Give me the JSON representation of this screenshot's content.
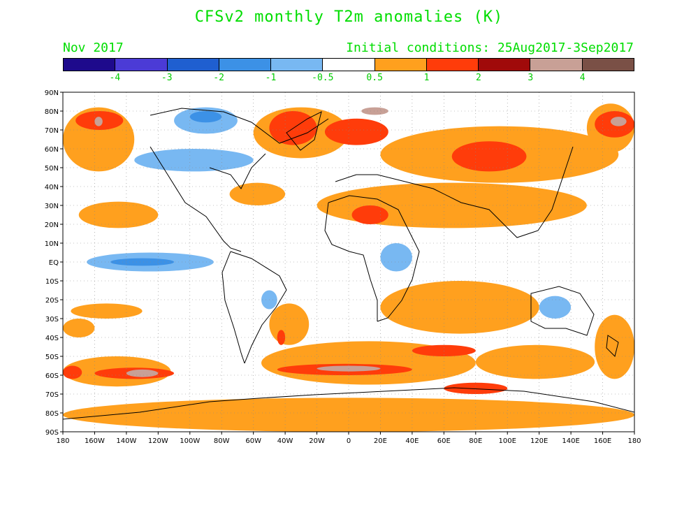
{
  "title": "CFSv2 monthly T2m anomalies (K)",
  "forecast_month": "Nov 2017",
  "initial_conditions": "Initial conditions: 25Aug2017-3Sep2017",
  "colorbar": {
    "colors": [
      "#1e0a8c",
      "#4b3bd6",
      "#1f5fd0",
      "#3c91e6",
      "#78b8f2",
      "#ffffff",
      "#ffa01e",
      "#ff3c0a",
      "#a00a0a",
      "#c8a096",
      "#7a5046"
    ],
    "labels": [
      "-4",
      "-3",
      "-2",
      "-1",
      "-0.5",
      "0.5",
      "1",
      "2",
      "3",
      "4"
    ]
  },
  "axes": {
    "lat_labels": [
      "90N",
      "80N",
      "70N",
      "60N",
      "50N",
      "40N",
      "30N",
      "20N",
      "10N",
      "EQ",
      "10S",
      "20S",
      "30S",
      "40S",
      "50S",
      "60S",
      "70S",
      "80S",
      "90S"
    ],
    "lon_labels": [
      "180",
      "160W",
      "140W",
      "120W",
      "100W",
      "80W",
      "60W",
      "40W",
      "20W",
      "0",
      "20E",
      "40E",
      "60E",
      "80E",
      "100E",
      "120E",
      "140E",
      "160E",
      "180"
    ]
  },
  "anomaly_regions": [
    {
      "level": "0.5",
      "lon": [
        -180,
        180
      ],
      "lat": [
        -90,
        -72
      ]
    },
    {
      "level": "0.5",
      "lon": [
        -180,
        -112
      ],
      "lat": [
        -66,
        -50
      ]
    },
    {
      "level": "0.5",
      "lon": [
        -55,
        80
      ],
      "lat": [
        -65,
        -42
      ]
    },
    {
      "level": "0.5",
      "lon": [
        80,
        155
      ],
      "lat": [
        -62,
        -44
      ]
    },
    {
      "level": "0.5",
      "lon": [
        155,
        180
      ],
      "lat": [
        -62,
        -28
      ]
    },
    {
      "level": "0.5",
      "lon": [
        20,
        120
      ],
      "lat": [
        -38,
        -10
      ]
    },
    {
      "level": "0.5",
      "lon": [
        -50,
        -25
      ],
      "lat": [
        -44,
        -22
      ]
    },
    {
      "level": "0.5",
      "lon": [
        -175,
        -130
      ],
      "lat": [
        -30,
        -22
      ]
    },
    {
      "level": "0.5",
      "lon": [
        -170,
        -120
      ],
      "lat": [
        18,
        32
      ]
    },
    {
      "level": "0.5",
      "lon": [
        -75,
        -40
      ],
      "lat": [
        30,
        42
      ]
    },
    {
      "level": "0.5",
      "lon": [
        -20,
        150
      ],
      "lat": [
        18,
        42
      ]
    },
    {
      "level": "0.5",
      "lon": [
        20,
        170
      ],
      "lat": [
        42,
        72
      ]
    },
    {
      "level": "0.5",
      "lon": [
        -60,
        0
      ],
      "lat": [
        55,
        82
      ]
    },
    {
      "level": "0.5",
      "lon": [
        -180,
        -135
      ],
      "lat": [
        48,
        82
      ]
    },
    {
      "level": "0.5",
      "lon": [
        150,
        180
      ],
      "lat": [
        58,
        84
      ]
    },
    {
      "level": "0.5",
      "lon": [
        -180,
        -160
      ],
      "lat": [
        -40,
        -30
      ]
    },
    {
      "level": "1",
      "lon": [
        -50,
        -20
      ],
      "lat": [
        62,
        80
      ]
    },
    {
      "level": "1",
      "lon": [
        -15,
        25
      ],
      "lat": [
        62,
        76
      ]
    },
    {
      "level": "1",
      "lon": [
        65,
        112
      ],
      "lat": [
        48,
        64
      ]
    },
    {
      "level": "1",
      "lon": [
        -172,
        -142
      ],
      "lat": [
        70,
        80
      ]
    },
    {
      "level": "1",
      "lon": [
        155,
        180
      ],
      "lat": [
        66,
        80
      ]
    },
    {
      "level": "1",
      "lon": [
        -160,
        -110
      ],
      "lat": [
        -62,
        -56
      ]
    },
    {
      "level": "1",
      "lon": [
        -45,
        40
      ],
      "lat": [
        -60,
        -54
      ]
    },
    {
      "level": "1",
      "lon": [
        40,
        80
      ],
      "lat": [
        -50,
        -44
      ]
    },
    {
      "level": "1",
      "lon": [
        60,
        100
      ],
      "lat": [
        -70,
        -64
      ]
    },
    {
      "level": "1",
      "lon": [
        -180,
        -168
      ],
      "lat": [
        -62,
        -55
      ]
    },
    {
      "level": "1",
      "lon": [
        2,
        25
      ],
      "lat": [
        20,
        30
      ]
    },
    {
      "level": "1",
      "lon": [
        -45,
        -40
      ],
      "lat": [
        -44,
        -36
      ]
    },
    {
      "level": "3",
      "lon": [
        -160,
        -155
      ],
      "lat": [
        72,
        77
      ]
    },
    {
      "level": "3",
      "lon": [
        8,
        25
      ],
      "lat": [
        78,
        82
      ]
    },
    {
      "level": "3",
      "lon": [
        165,
        175
      ],
      "lat": [
        72,
        77
      ]
    },
    {
      "level": "3",
      "lon": [
        -140,
        -120
      ],
      "lat": [
        -61,
        -57
      ]
    },
    {
      "level": "3",
      "lon": [
        -20,
        20
      ],
      "lat": [
        -58,
        -55
      ]
    },
    {
      "level": "-0.5",
      "lon": [
        -135,
        -60
      ],
      "lat": [
        48,
        60
      ]
    },
    {
      "level": "-0.5",
      "lon": [
        -110,
        -70
      ],
      "lat": [
        68,
        82
      ]
    },
    {
      "level": "-0.5",
      "lon": [
        -165,
        -85
      ],
      "lat": [
        -5,
        5
      ]
    },
    {
      "level": "-0.5",
      "lon": [
        120,
        140
      ],
      "lat": [
        -30,
        -18
      ]
    },
    {
      "level": "-0.5",
      "lon": [
        20,
        40
      ],
      "lat": [
        -5,
        10
      ]
    },
    {
      "level": "-0.5",
      "lon": [
        -55,
        -45
      ],
      "lat": [
        -25,
        -15
      ]
    },
    {
      "level": "-1",
      "lon": [
        -150,
        -110
      ],
      "lat": [
        -2,
        2
      ]
    },
    {
      "level": "-1",
      "lon": [
        -100,
        -80
      ],
      "lat": [
        74,
        80
      ]
    }
  ]
}
